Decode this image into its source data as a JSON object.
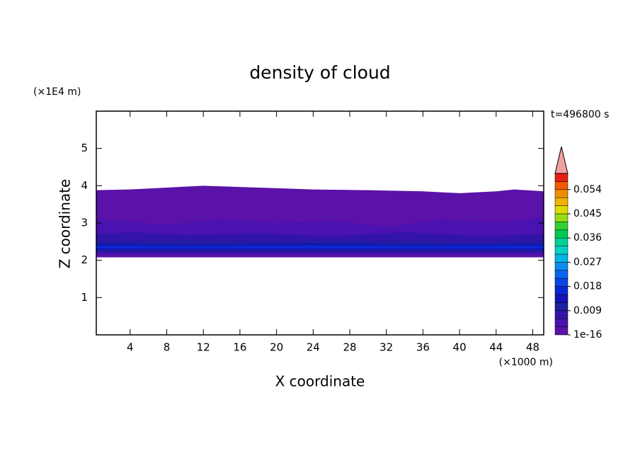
{
  "chart_data": {
    "type": "contour",
    "title": "density of cloud",
    "x_label": "X coordinate",
    "y_label": "Z coordinate",
    "x_unit": "(×1000 m)",
    "y_unit": "(×1E4 m)",
    "time_label": "t=496800 s",
    "xlim": [
      0.3,
      49.2
    ],
    "ylim": [
      0,
      6
    ],
    "xticks": [
      4,
      8,
      12,
      16,
      20,
      24,
      28,
      32,
      36,
      40,
      44,
      48
    ],
    "yticks": [
      1,
      2,
      3,
      4,
      5
    ],
    "colorbar": {
      "levels": [
        1e-16,
        0.003,
        0.006,
        0.009,
        0.012,
        0.015,
        0.018,
        0.021,
        0.024,
        0.027,
        0.03,
        0.033,
        0.036,
        0.039,
        0.042,
        0.045,
        0.048,
        0.051,
        0.054,
        0.057,
        0.06
      ],
      "colors": [
        "#5b12a8",
        "#4a12b0",
        "#3214a8",
        "#1e1ea0",
        "#1414b4",
        "#0a28d2",
        "#0a46e6",
        "#0a64f0",
        "#0a8cf0",
        "#00b4e6",
        "#00d2c8",
        "#00d296",
        "#00c850",
        "#32d232",
        "#96dc14",
        "#dcdc00",
        "#f0b400",
        "#f08c00",
        "#f05a00",
        "#e61e14"
      ],
      "extend_color": "#f0a0a0",
      "ticks": [
        1e-16,
        0.009,
        0.018,
        0.027,
        0.036,
        0.045,
        0.054
      ]
    },
    "contours": [
      {
        "level": 1e-16,
        "x": [
          0.3,
          49.2,
          49.2,
          46,
          44,
          40,
          36,
          30,
          24,
          18,
          12,
          8,
          4,
          0.3
        ],
        "z": [
          2.08,
          2.08,
          3.85,
          3.9,
          3.85,
          3.8,
          3.85,
          3.88,
          3.9,
          3.95,
          4.0,
          3.95,
          3.9,
          3.88
        ]
      },
      {
        "level": 0.003,
        "x": [
          0.3,
          49.2,
          49.2,
          44,
          38,
          32,
          26,
          20,
          14,
          8,
          3,
          0.3
        ],
        "z": [
          2.15,
          2.15,
          3.15,
          3.0,
          3.1,
          2.9,
          3.05,
          3.0,
          3.1,
          2.95,
          3.05,
          3.1
        ]
      },
      {
        "level": 0.006,
        "x": [
          0.3,
          49.2,
          49.2,
          42,
          34,
          26,
          18,
          10,
          4,
          0.3
        ],
        "z": [
          2.2,
          2.2,
          2.7,
          2.65,
          2.75,
          2.65,
          2.72,
          2.68,
          2.75,
          2.7
        ]
      },
      {
        "level": 0.009,
        "x": [
          0.3,
          49.2,
          49.2,
          40,
          30,
          20,
          10,
          0.3
        ],
        "z": [
          2.24,
          2.24,
          2.5,
          2.48,
          2.52,
          2.5,
          2.52,
          2.5
        ]
      },
      {
        "level": 0.012,
        "x": [
          0.3,
          49.2,
          49.2,
          36,
          24,
          12,
          0.3
        ],
        "z": [
          2.28,
          2.28,
          2.44,
          2.42,
          2.45,
          2.42,
          2.44
        ]
      },
      {
        "level": 0.015,
        "x": [
          0.3,
          49.2,
          49.2,
          36,
          24,
          12,
          0.3
        ],
        "z": [
          2.32,
          2.32,
          2.39,
          2.38,
          2.4,
          2.38,
          2.39
        ]
      }
    ]
  }
}
